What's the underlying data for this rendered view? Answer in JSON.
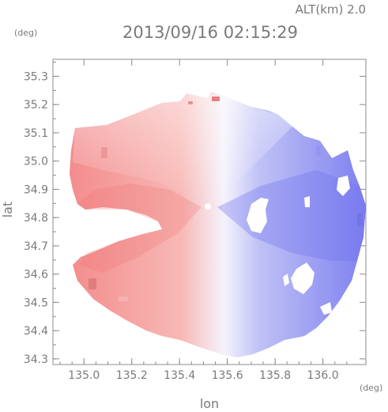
{
  "header": {
    "altitude_label": "ALT(km) 2.0",
    "timestamp": "2013/09/16 02:15:29"
  },
  "chart_data": {
    "type": "heatmap",
    "title": "2013/09/16 02:15:29",
    "subtitle": "ALT(km) 2.0",
    "xlabel": "lon",
    "ylabel": "lat",
    "x_unit": "(deg)",
    "y_unit": "(deg)",
    "xlim": [
      134.87,
      136.18
    ],
    "ylim": [
      34.28,
      35.36
    ],
    "x_ticks": [
      135.0,
      135.2,
      135.4,
      135.6,
      135.8,
      136.0
    ],
    "y_ticks": [
      34.3,
      34.4,
      34.5,
      34.6,
      34.7,
      34.8,
      34.9,
      35.0,
      35.1,
      35.2,
      35.3
    ],
    "x_tick_labels": [
      "135.0",
      "135.2",
      "135.4",
      "135.6",
      "135.8",
      "136.0"
    ],
    "y_tick_labels": [
      "34.3",
      "34.4",
      "34.5",
      "34.6",
      "34.7",
      "34.8",
      "34.9",
      "35.0",
      "35.1",
      "35.2",
      "35.3"
    ],
    "radar_center": {
      "lon": 135.52,
      "lat": 34.82
    },
    "grid": false,
    "colors": {
      "away": "#f07a7a",
      "toward": "#6c6cf0",
      "neutral": "#f4f2fb",
      "axis": "#8c8c8c",
      "text": "#7a7a7a"
    }
  }
}
